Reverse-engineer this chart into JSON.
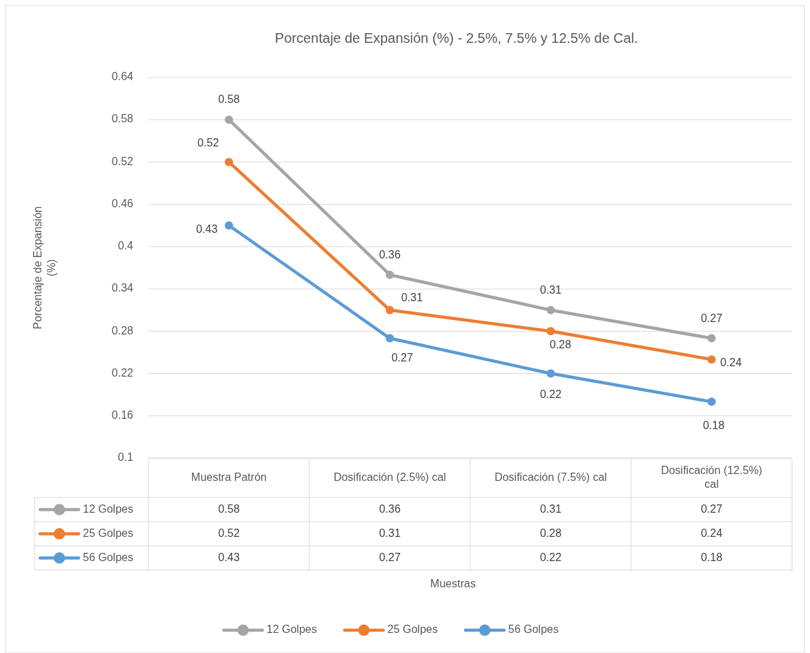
{
  "chart_data": {
    "type": "line",
    "title": "Porcentaje de Expansión (%) - 2.5%, 7.5% y 12.5% de Cal.",
    "annotations": [
      "Muestras",
      "0.58",
      "0.36",
      "0.31",
      "0.27",
      "0.52",
      "0.31",
      "0.28",
      "0.24",
      "0.43",
      "0.27",
      "0.22",
      "0.18"
    ],
    "ylabel": "Porcentaje de Expansión (%)",
    "categories": [
      "Muestra Patrón",
      "Dosificación (2.5%) cal",
      "Dosificación (7.5%) cal",
      "Dosificación (12.5%) cal"
    ],
    "series": [
      {
        "name": "12 Golpes",
        "color": "#a5a5a5",
        "values": [
          0.58,
          0.36,
          0.31,
          0.27
        ],
        "value_labels": [
          "0.58",
          "0.36",
          "0.31",
          "0.27"
        ]
      },
      {
        "name": "25 Golpes",
        "color": "#ed7d31",
        "values": [
          0.52,
          0.31,
          0.28,
          0.24
        ],
        "value_labels": [
          "0.52",
          "0.31",
          "0.28",
          "0.24"
        ]
      },
      {
        "name": "56 Golpes",
        "color": "#5b9bd5",
        "values": [
          0.43,
          0.27,
          0.22,
          0.18
        ],
        "value_labels": [
          "0.43",
          "0.27",
          "0.22",
          "0.18"
        ]
      }
    ],
    "ylim": [
      0.1,
      0.64
    ],
    "yticks": [
      0.1,
      0.16,
      0.22,
      0.28,
      0.34,
      0.4,
      0.46,
      0.52,
      0.58,
      0.64
    ],
    "grid": "y",
    "legend": "bottom",
    "marker": "circle",
    "line_style": "solid"
  }
}
